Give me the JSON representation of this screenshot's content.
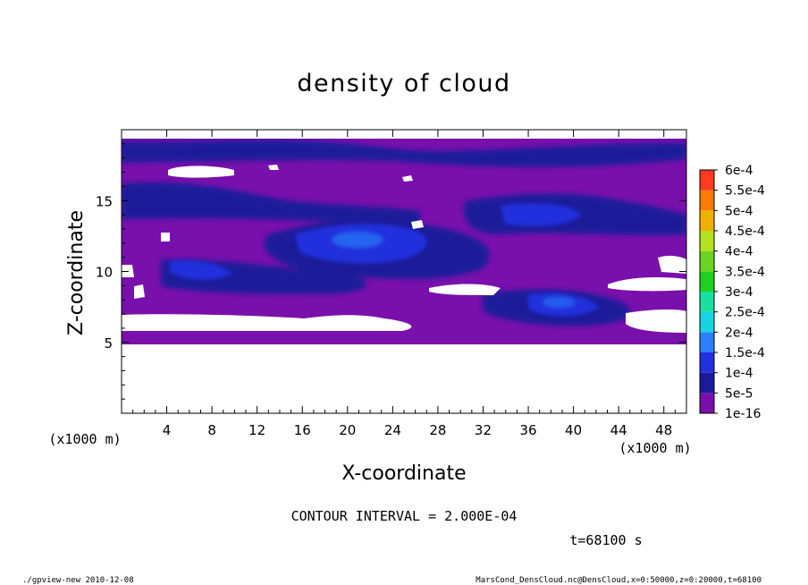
{
  "chart_data": {
    "type": "heatmap",
    "title": "density of cloud",
    "xlabel": "X-coordinate",
    "ylabel": "Z-coordinate",
    "x_unit": "(x1000 m)",
    "y_unit": "(x1000 m)",
    "xlim": [
      0,
      50
    ],
    "ylim": [
      0,
      20
    ],
    "x_ticks": [
      4,
      8,
      12,
      16,
      20,
      24,
      28,
      32,
      36,
      40,
      44,
      48
    ],
    "y_ticks": [
      5,
      10,
      15
    ],
    "colorbar": {
      "levels": [
        "1e-16",
        "5e-5",
        "1e-4",
        "1.5e-4",
        "2e-4",
        "2.5e-4",
        "3e-4",
        "3.5e-4",
        "4e-4",
        "4.5e-4",
        "5e-4",
        "5.5e-4",
        "6e-4"
      ],
      "colors": [
        "#7a10ac",
        "#1a1a9a",
        "#2230e0",
        "#2a80ff",
        "#15d5e5",
        "#18e0a0",
        "#20d020",
        "#6ad420",
        "#b5e020",
        "#f0b000",
        "#ff7a00",
        "#ff3a1e",
        "#ff6060"
      ]
    },
    "contour_interval": "CONTOUR INTERVAL = 2.000E-04",
    "time_label": "t=68100 s",
    "cloud_base_z": 5,
    "cloud_top_z": 19.5
  },
  "footer": {
    "left": "./gpview-new   2010-12-08",
    "right": "MarsCond_DensCloud.nc@DensCloud,x=0:50000,z=0:20000,t=68100"
  }
}
